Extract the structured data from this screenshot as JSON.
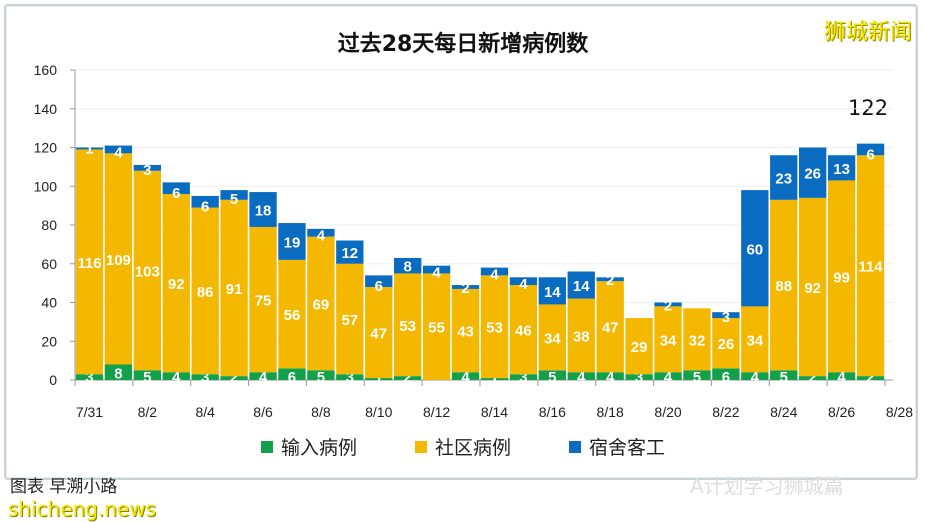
{
  "chart_data": {
    "type": "bar",
    "stacked": true,
    "title": "过去28天每日新增病例数",
    "categories": [
      "7/31",
      "8/1",
      "8/2",
      "8/3",
      "8/4",
      "8/5",
      "8/6",
      "8/7",
      "8/8",
      "8/9",
      "8/10",
      "8/11",
      "8/12",
      "8/13",
      "8/14",
      "8/15",
      "8/16",
      "8/17",
      "8/18",
      "8/19",
      "8/20",
      "8/21",
      "8/22",
      "8/23",
      "8/24",
      "8/25",
      "8/26",
      "8/27"
    ],
    "x_tick_labels": [
      "7/31",
      "8/2",
      "8/4",
      "8/6",
      "8/8",
      "8/10",
      "8/12",
      "8/14",
      "8/16",
      "8/18",
      "8/20",
      "8/22",
      "8/24",
      "8/26",
      "8/28"
    ],
    "y_ticks": [
      0,
      20,
      40,
      60,
      80,
      100,
      120,
      140,
      160
    ],
    "ylim": [
      0,
      160
    ],
    "grid": true,
    "legend_position": "bottom",
    "series": [
      {
        "name": "输入病例",
        "color": "#12a14a",
        "values": [
          3,
          8,
          5,
          4,
          3,
          2,
          4,
          6,
          5,
          3,
          1,
          2,
          0,
          4,
          1,
          3,
          5,
          4,
          4,
          3,
          4,
          5,
          6,
          4,
          5,
          2,
          4,
          2
        ]
      },
      {
        "name": "社区病例",
        "color": "#f5b800",
        "values": [
          116,
          109,
          103,
          92,
          86,
          91,
          75,
          56,
          69,
          57,
          47,
          53,
          55,
          43,
          53,
          46,
          34,
          38,
          47,
          29,
          34,
          32,
          26,
          34,
          88,
          92,
          99,
          114
        ]
      },
      {
        "name": "宿舍客工",
        "color": "#0a6cc1",
        "values": [
          1,
          4,
          3,
          6,
          6,
          5,
          18,
          19,
          4,
          12,
          6,
          8,
          4,
          2,
          4,
          4,
          14,
          14,
          2,
          0,
          2,
          0,
          3,
          60,
          23,
          26,
          13,
          6
        ]
      }
    ],
    "annotation": "122"
  },
  "watermarks": {
    "top_right": "狮城新闻",
    "bottom_left": "shicheng.news",
    "bottom_right": "A计划学习狮城篇"
  },
  "credit": "图表  早溯小路"
}
